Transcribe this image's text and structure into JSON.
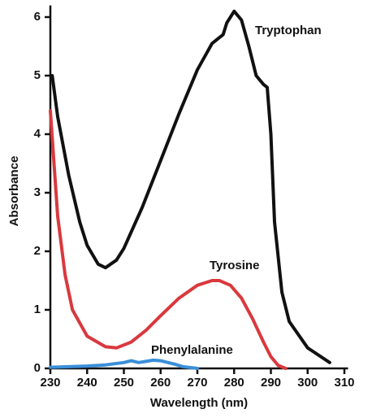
{
  "chart_data": {
    "type": "line",
    "x_label": "Wavelength (nm)",
    "y_label": "Absorbance",
    "xlim": [
      230,
      311
    ],
    "ylim": [
      0,
      6.2
    ],
    "xticks": [
      230,
      240,
      250,
      260,
      270,
      280,
      290,
      300,
      310
    ],
    "yticks": [
      0,
      1,
      2,
      3,
      4,
      5,
      6
    ],
    "series": [
      {
        "name": "Tryptophan",
        "color": "#111111",
        "x": [
          230.5,
          232,
          235,
          238,
          240,
          243,
          245,
          248,
          250,
          255,
          260,
          265,
          270,
          274,
          276,
          277,
          278,
          280,
          282,
          284,
          286,
          288,
          289,
          290,
          291,
          293,
          295,
          300,
          306
        ],
        "values": [
          5.0,
          4.3,
          3.3,
          2.5,
          2.1,
          1.78,
          1.72,
          1.85,
          2.05,
          2.75,
          3.55,
          4.35,
          5.1,
          5.55,
          5.65,
          5.7,
          5.9,
          6.1,
          5.95,
          5.5,
          5.0,
          4.85,
          4.8,
          4.0,
          2.5,
          1.3,
          0.8,
          0.35,
          0.1
        ]
      },
      {
        "name": "Tyrosine",
        "color": "#d9393e",
        "x": [
          230,
          232,
          234,
          236,
          240,
          245,
          248,
          252,
          256,
          260,
          265,
          270,
          274,
          276,
          279,
          282,
          285,
          288,
          290,
          292,
          294
        ],
        "values": [
          4.4,
          2.6,
          1.6,
          1.0,
          0.55,
          0.37,
          0.35,
          0.45,
          0.65,
          0.9,
          1.2,
          1.42,
          1.5,
          1.5,
          1.42,
          1.2,
          0.85,
          0.45,
          0.2,
          0.05,
          0
        ]
      },
      {
        "name": "Phenylalanine",
        "color": "#3a8fd9",
        "x": [
          230,
          240,
          245,
          250,
          252,
          254,
          256,
          258,
          260,
          262,
          264,
          266,
          270
        ],
        "values": [
          0.02,
          0.04,
          0.06,
          0.1,
          0.13,
          0.1,
          0.12,
          0.14,
          0.13,
          0.1,
          0.07,
          0.03,
          0
        ]
      }
    ]
  }
}
